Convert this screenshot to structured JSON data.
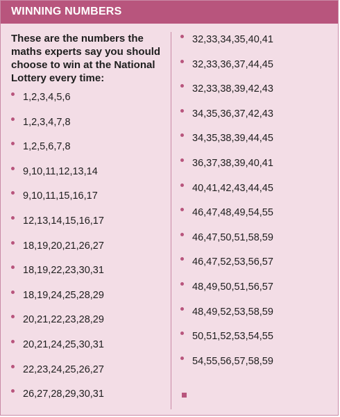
{
  "header": {
    "title": "WINNING NUMBERS"
  },
  "intro": "These are the numbers the maths experts say you should choose to win at the National Lottery every time:",
  "left_column": [
    "1,2,3,4,5,6",
    "1,2,3,4,7,8",
    "1,2,5,6,7,8",
    "9,10,11,12,13,14",
    "9,10,11,15,16,17",
    "12,13,14,15,16,17",
    "18,19,20,21,26,27",
    "18,19,22,23,30,31",
    "18,19,24,25,28,29",
    "20,21,22,23,28,29",
    "20,21,24,25,30,31",
    "22,23,24,25,26,27",
    "26,27,28,29,30,31"
  ],
  "right_column": [
    "32,33,34,35,40,41",
    "32,33,36,37,44,45",
    "32,33,38,39,42,43",
    "34,35,36,37,42,43",
    "34,35,38,39,44,45",
    "36,37,38,39,40,41",
    "40,41,42,43,44,45",
    "46,47,48,49,54,55",
    "46,47,50,51,58,59",
    "46,47,52,53,56,57",
    "48,49,50,51,56,57",
    "48,49,52,53,58,59",
    "50,51,52,53,54,55",
    "54,55,56,57,58,59"
  ],
  "colors": {
    "accent": "#b8557d",
    "background": "#f3dde6",
    "text": "#1e1e1e"
  },
  "end_marker_icon": "square-end-marker"
}
